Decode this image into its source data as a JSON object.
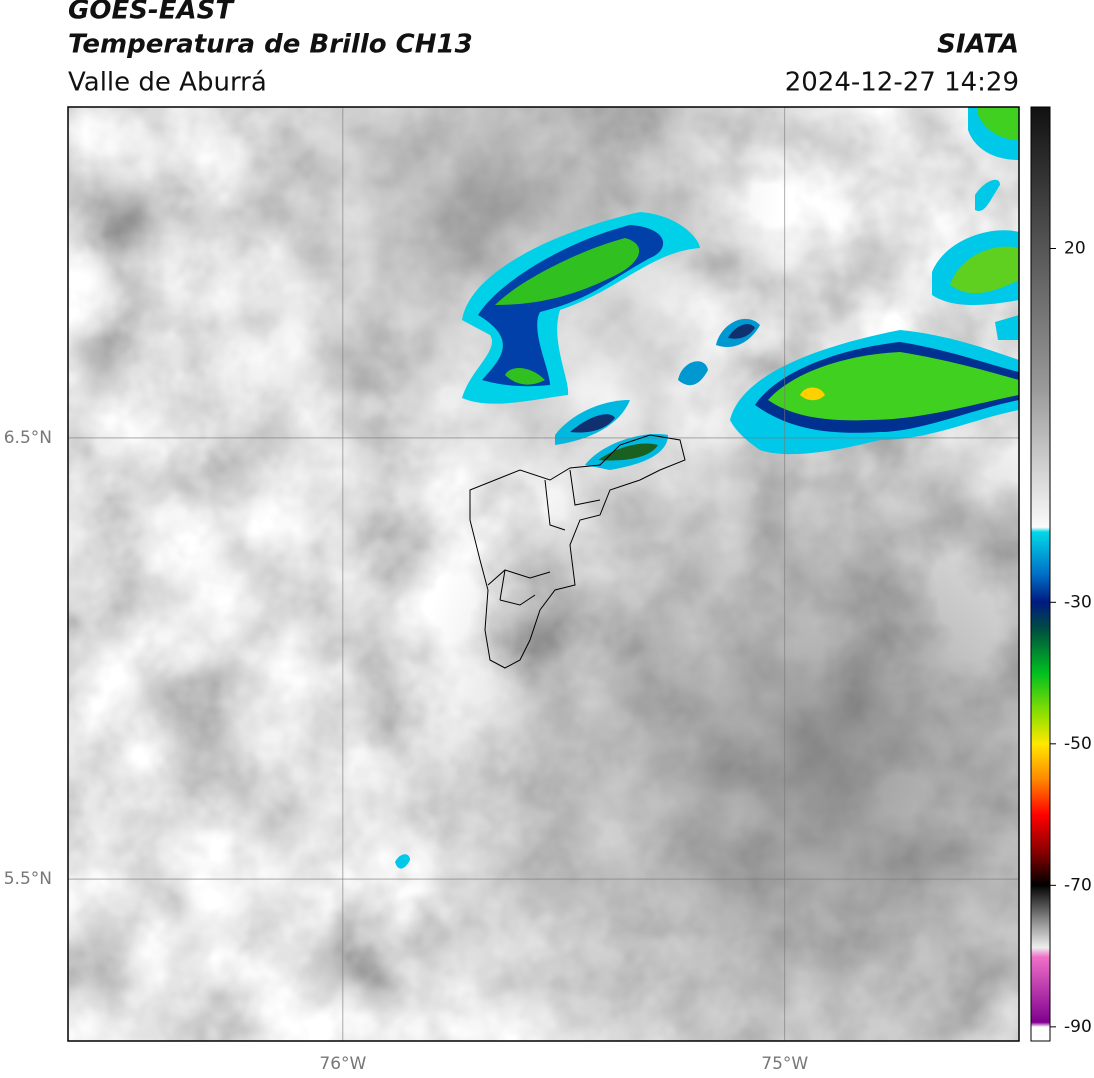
{
  "header": {
    "title": "GOES-EAST",
    "subtitle": "Temperatura de Brillo CH13",
    "region": "Valle de Aburrá",
    "source": "SIATA",
    "datetime": "2024-12-27 14:29"
  },
  "map": {
    "lonlim": [
      -76.622,
      -74.47
    ],
    "latlim": [
      5.133,
      7.25
    ],
    "lonticks": [
      {
        "value": -76,
        "label": "76°W"
      },
      {
        "value": -75,
        "label": "75°W"
      }
    ],
    "latticks": [
      {
        "value": 6.5,
        "label": "6.5°N"
      },
      {
        "value": 5.5,
        "label": "5.5°N"
      }
    ],
    "grid": true
  },
  "colorbar": {
    "lim": [
      -92,
      40
    ],
    "ticks": [
      20,
      -30,
      -50,
      -70,
      -90
    ]
  }
}
